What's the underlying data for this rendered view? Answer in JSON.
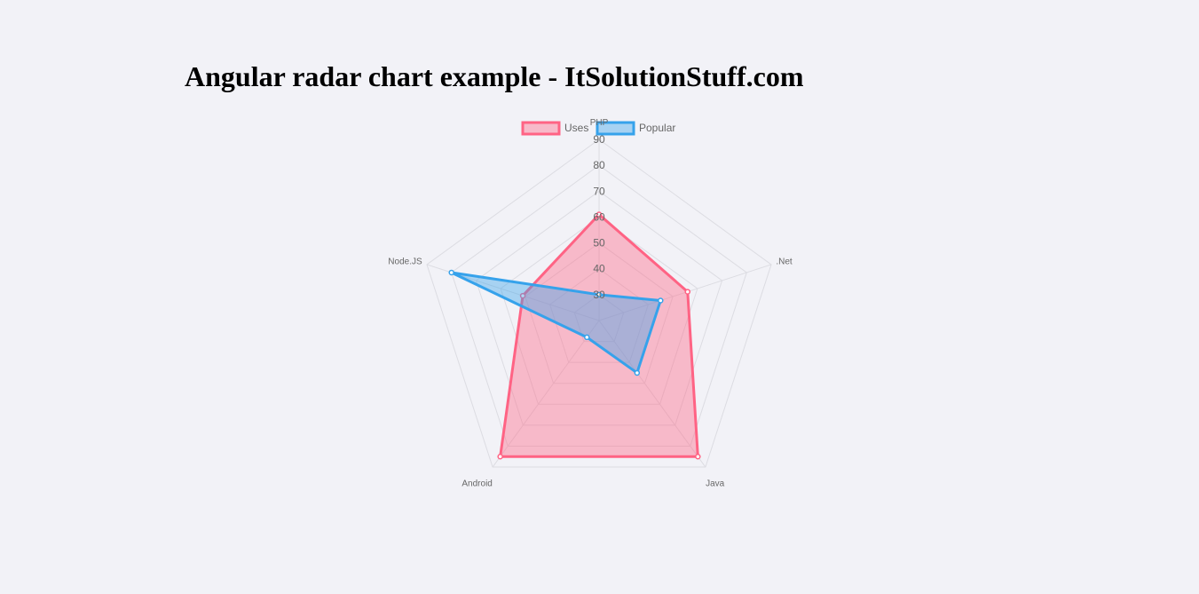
{
  "page": {
    "title": "Angular radar chart example - ItSolutionStuff.com"
  },
  "chart_data": {
    "type": "radar",
    "title": "",
    "categories": [
      "PHP",
      ".Net",
      "Java",
      "Android",
      "Node.JS"
    ],
    "rlim": [
      20,
      90
    ],
    "ticks": [
      30,
      40,
      50,
      60,
      70,
      80,
      90
    ],
    "grid": true,
    "legend_position": "top",
    "series": [
      {
        "name": "Uses",
        "values": [
          61,
          56,
          85,
          85,
          51
        ],
        "border_color": "#ff6384",
        "fill_color": "rgba(255,99,132,0.4)"
      },
      {
        "name": "Popular",
        "values": [
          30,
          45,
          45,
          28,
          80
        ],
        "border_color": "#36a2eb",
        "fill_color": "rgba(54,162,235,0.4)"
      }
    ]
  }
}
